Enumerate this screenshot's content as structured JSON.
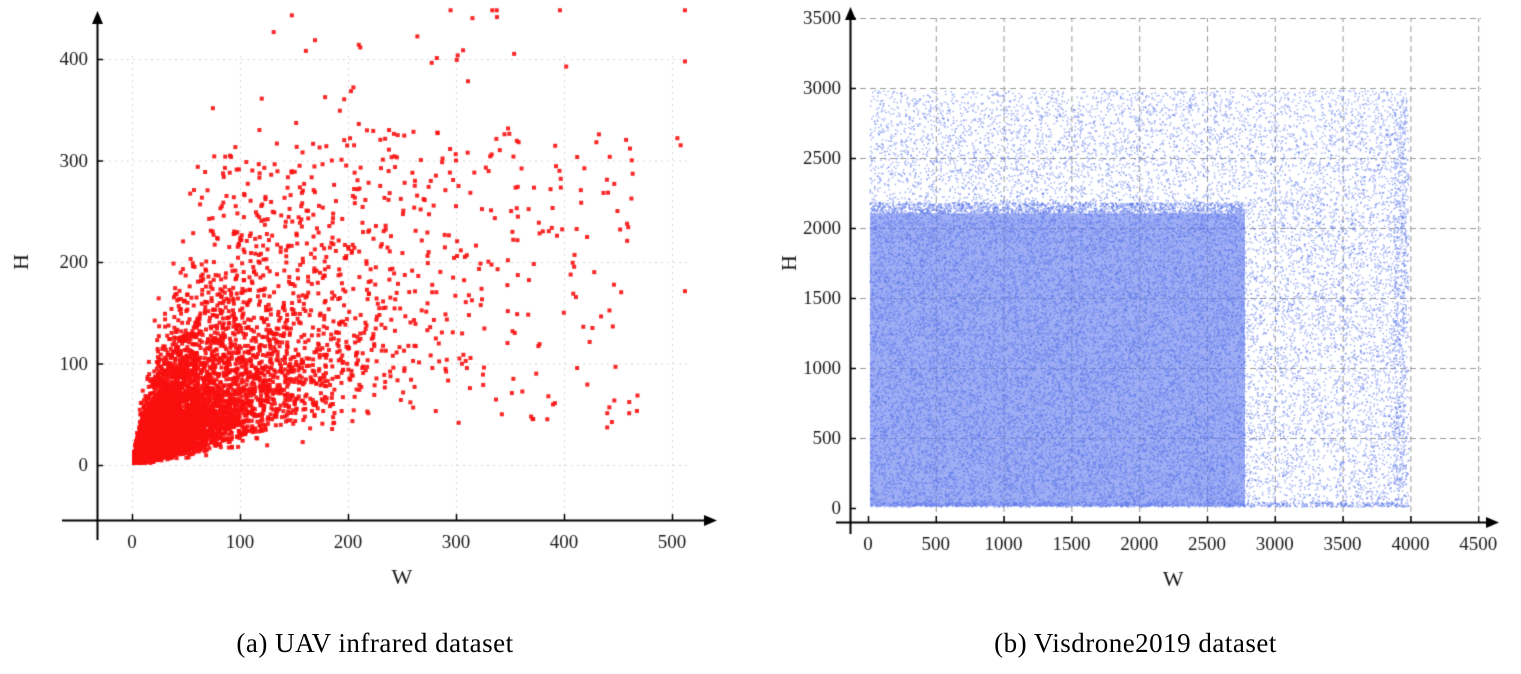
{
  "page": {
    "background": "#ffffff"
  },
  "chart_data": [
    {
      "type": "scatter",
      "panel": "a",
      "title": "(a) UAV infrared dataset",
      "xlabel": "W",
      "ylabel": "H",
      "xlim": [
        -65,
        555
      ],
      "ylim": [
        -60,
        460
      ],
      "xticks": [
        0,
        100,
        200,
        300,
        400,
        500
      ],
      "yticks": [
        0,
        100,
        200,
        300,
        400
      ],
      "x_data_range": [
        1,
        512
      ],
      "y_data_range": [
        1,
        445
      ],
      "dense_region": {
        "x": [
          0,
          250
        ],
        "y": [
          0,
          180
        ]
      },
      "approx_point_count": 7500,
      "grid": {
        "show": true,
        "style": "dotted",
        "color": "#d9d9d9",
        "skip_zero": false
      },
      "axis_color": "#000000",
      "tick_color": "#1a1a1a",
      "marker": {
        "shape": "square",
        "color": "#fa0f0f",
        "size": 4,
        "opacity": 0.9
      },
      "generation": {
        "seed": 7,
        "layers": [
          {
            "kind": "wedge_w",
            "n": 3600,
            "exp_mean": 70,
            "ratio_mu": -0.51,
            "ratio_sigma": 0.45
          },
          {
            "kind": "wedge_h",
            "n": 3600,
            "exp_mean": 55,
            "ratio_mu": -0.6,
            "ratio_sigma": 0.45
          },
          {
            "kind": "uniform",
            "n": 230,
            "x": [
              140,
              470
            ],
            "y": [
              40,
              330
            ]
          },
          {
            "kind": "uniform",
            "n": 45,
            "x": [
              60,
              140
            ],
            "y": [
              200,
              305
            ]
          }
        ],
        "clamp": {
          "x": [
            2,
            512
          ],
          "y": [
            2,
            448
          ]
        }
      },
      "notable_points": [
        [
          148,
          443
        ],
        [
          161,
          408
        ],
        [
          210,
          414
        ],
        [
          205,
          372
        ],
        [
          118,
          330
        ],
        [
          152,
          337
        ],
        [
          210,
          336
        ],
        [
          238,
          330
        ],
        [
          246,
          325
        ],
        [
          283,
          327
        ],
        [
          300,
          300
        ],
        [
          358,
          318
        ],
        [
          397,
          282
        ],
        [
          430,
          318
        ],
        [
          452,
          232
        ],
        [
          505,
          322
        ],
        [
          508,
          315
        ],
        [
          300,
          255
        ],
        [
          96,
          255
        ],
        [
          118,
          283
        ],
        [
          262,
          280
        ],
        [
          270,
          262
        ],
        [
          185,
          300
        ],
        [
          372,
          198
        ],
        [
          428,
          190
        ],
        [
          440,
          37
        ]
      ]
    },
    {
      "type": "scatter",
      "panel": "b",
      "title": "(b) Visdrone2019 dataset",
      "xlabel": "W",
      "ylabel": "H",
      "xlim": [
        -180,
        4680
      ],
      "ylim": [
        -180,
        3620
      ],
      "xticks": [
        0,
        500,
        1000,
        1500,
        2000,
        2500,
        3000,
        3500,
        4000,
        4500
      ],
      "yticks": [
        0,
        500,
        1000,
        1500,
        2000,
        2500,
        3000,
        3500
      ],
      "x_data_range": [
        5,
        4000
      ],
      "y_data_range": [
        5,
        3000
      ],
      "dense_region": {
        "x": [
          0,
          2780
        ],
        "y": [
          0,
          2100
        ]
      },
      "approx_point_count": 40000,
      "grid": {
        "show": true,
        "style": "dashed",
        "color": "#9b9b9b",
        "skip_zero": true
      },
      "axis_color": "#000000",
      "tick_color": "#1a1a1a",
      "marker": {
        "shape": "dot",
        "color": "#5d78e9",
        "size": 1.5,
        "opacity": 0.55
      },
      "generation": {
        "seed": 11,
        "layers": [
          {
            "kind": "rect_fill",
            "x": [
              15,
              2780
            ],
            "y": [
              12,
              2105
            ],
            "color": "rgba(100,124,238,0.62)"
          },
          {
            "kind": "uniform",
            "n": 21000,
            "x": [
              15,
              2780
            ],
            "y": [
              12,
              2105
            ]
          },
          {
            "kind": "uniform",
            "n": 1500,
            "x": [
              15,
              2780
            ],
            "y": [
              2105,
              2180
            ]
          },
          {
            "kind": "uniform",
            "n": 5200,
            "x": [
              15,
              3965
            ],
            "y": [
              2110,
              2980
            ]
          },
          {
            "kind": "uniform",
            "n": 4200,
            "x": [
              2780,
              3970
            ],
            "y": [
              12,
              2110
            ]
          },
          {
            "kind": "uniform",
            "n": 700,
            "x": [
              3880,
              3990
            ],
            "y": [
              12,
              2930
            ]
          },
          {
            "kind": "uniform",
            "n": 900,
            "x": [
              15,
              3990
            ],
            "y": [
              6,
              40
            ]
          }
        ],
        "clamp": {
          "x": [
            2,
            4000
          ],
          "y": [
            2,
            3000
          ]
        }
      },
      "notable_points": []
    }
  ]
}
